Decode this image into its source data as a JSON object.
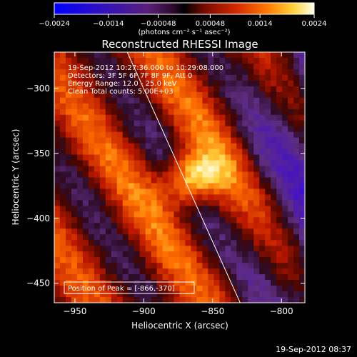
{
  "chart_data": {
    "type": "heatmap",
    "title": "Reconstructed RHESSI Image",
    "xlabel": "Heliocentric X (arcsec)",
    "ylabel": "Heliocentric Y (arcsec)",
    "xlim": [
      -965,
      -783
    ],
    "ylim": [
      -465,
      -272
    ],
    "x_ticks": [
      -950,
      -900,
      -850,
      -800
    ],
    "x_tick_labels": [
      "−950",
      "−900",
      "−850",
      "−800"
    ],
    "y_ticks": [
      -300,
      -350,
      -400,
      -450
    ],
    "y_tick_labels": [
      "−300",
      "−350",
      "−400",
      "−450"
    ],
    "colorbar": {
      "range": [
        -0.0024,
        0.0024
      ],
      "ticks": [
        -0.0024,
        -0.0014,
        -0.00048,
        0.00048,
        0.0014,
        0.0024
      ],
      "tick_labels": [
        "−0.0024",
        "−0.0014",
        "−0.00048",
        "0.00048",
        "0.0014",
        "0.0024"
      ],
      "unit_label": "(photons cm⁻² s⁻¹ asec⁻²)"
    },
    "annotations": [
      "19-Sep-2012 10:27:36.000 to 10:29:08.000",
      "Detectors: 3F 5F 6F 7F 8F 9F, Att 0",
      "Energy Range: 12.0 - 25.0 keV",
      "Clean     Total counts: 5.00E+03"
    ],
    "peak_label": "Position of Peak = [-866,-370]",
    "peak": [
      -866,
      -370
    ],
    "limb_line": [
      [
        -912,
        -272
      ],
      [
        -830,
        -465
      ]
    ]
  },
  "footer_timestamp": "19-Sep-2012 08:37"
}
